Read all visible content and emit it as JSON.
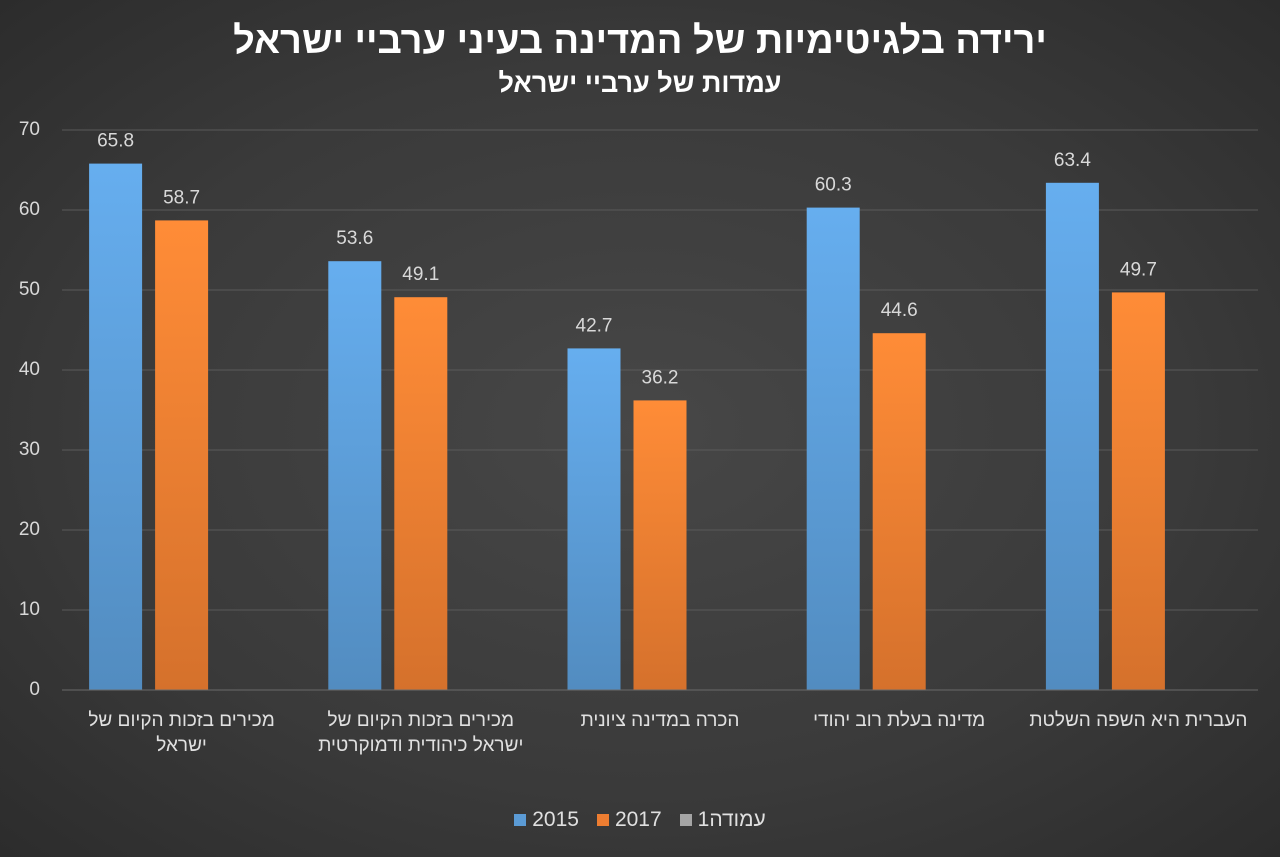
{
  "chart_data": {
    "type": "bar",
    "title": "ירידה בלגיטימיות של המדינה בעיני ערביי ישראל",
    "subtitle": "עמדות של ערביי ישראל",
    "categories": [
      "מכירים בזכות הקיום של ישראל",
      "מכירים בזכות הקיום של ישראל כיהודית ודמוקרטית",
      "הכרה במדינה ציונית",
      "מדינה בעלת רוב יהודי",
      "העברית היא השפה השלטת"
    ],
    "series": [
      {
        "name": "2015",
        "color": "#5b9bd5",
        "values": [
          65.8,
          53.6,
          42.7,
          60.3,
          63.4
        ]
      },
      {
        "name": "2017",
        "color": "#ed7d31",
        "values": [
          58.7,
          49.1,
          36.2,
          44.6,
          49.7
        ]
      },
      {
        "name": "עמודה1",
        "color": "#a5a5a5",
        "values": [
          null,
          null,
          null,
          null,
          null
        ]
      }
    ],
    "ylim": [
      0,
      70
    ],
    "yticks": [
      0,
      10,
      20,
      30,
      40,
      50,
      60,
      70
    ],
    "grid": true,
    "legend": "bottom"
  }
}
